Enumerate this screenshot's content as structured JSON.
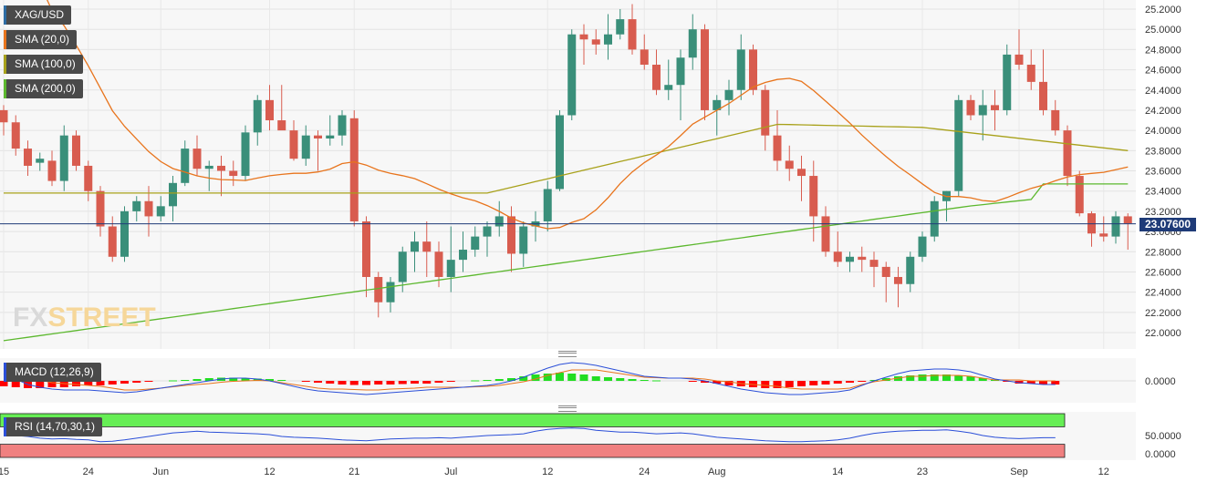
{
  "instrument": "XAG/USD",
  "logo": {
    "text_a": "FX",
    "text_b": "STREET"
  },
  "legend": [
    {
      "label": "XAG/USD",
      "color": "#2e6da4"
    },
    {
      "label": "SMA (20,0)",
      "color": "#e8741c"
    },
    {
      "label": "SMA (100,0)",
      "color": "#a8a11a"
    },
    {
      "label": "SMA (200,0)",
      "color": "#5cb82e"
    }
  ],
  "colors": {
    "up": "#3a8f7a",
    "down": "#d85c4f",
    "sma20": "#e8741c",
    "sma100": "#a8a11a",
    "sma200": "#5cb82e",
    "macd_line": "#2b4fd8",
    "signal_line": "#e8741c",
    "hist_up": "#22dd22",
    "hist_down": "#ff0000",
    "rsi_line": "#2b4fd8",
    "rsi_over": "#66ee55",
    "rsi_under": "#f08080"
  },
  "current_price": {
    "value": 23.076,
    "label": "23.07600"
  },
  "price_axis": {
    "ticks": [
      "25.2000",
      "25.0000",
      "24.8000",
      "24.6000",
      "24.4000",
      "24.2000",
      "24.0000",
      "23.8000",
      "23.6000",
      "23.4000",
      "23.2000",
      "23.0000",
      "22.8000",
      "22.6000",
      "22.4000",
      "22.2000",
      "22.0000"
    ],
    "min": 21.85,
    "max": 25.25
  },
  "time_axis": {
    "labels": [
      {
        "label": "15",
        "i": 0
      },
      {
        "label": "24",
        "i": 7
      },
      {
        "label": "Jun",
        "i": 13
      },
      {
        "label": "12",
        "i": 22
      },
      {
        "label": "21",
        "i": 29
      },
      {
        "label": "Jul",
        "i": 37
      },
      {
        "label": "12",
        "i": 45
      },
      {
        "label": "24",
        "i": 53
      },
      {
        "label": "Aug",
        "i": 59
      },
      {
        "label": "14",
        "i": 69
      },
      {
        "label": "23",
        "i": 76
      },
      {
        "label": "Sep",
        "i": 84
      },
      {
        "label": "12",
        "i": 91
      }
    ]
  },
  "macd": {
    "label": "MACD (12,26,9)",
    "tick": "0.0000",
    "histogram": [
      -0.06,
      -0.07,
      -0.08,
      -0.08,
      -0.07,
      -0.07,
      -0.06,
      -0.05,
      -0.05,
      -0.04,
      -0.03,
      -0.02,
      -0.01,
      0.0,
      0.005,
      0.01,
      0.02,
      0.03,
      0.035,
      0.035,
      0.03,
      0.025,
      0.02,
      0.01,
      0.0,
      -0.01,
      -0.02,
      -0.03,
      -0.04,
      -0.045,
      -0.045,
      -0.04,
      -0.04,
      -0.035,
      -0.03,
      -0.03,
      -0.02,
      -0.01,
      0.0,
      0.005,
      0.01,
      0.02,
      0.03,
      0.05,
      0.07,
      0.08,
      0.09,
      0.08,
      0.07,
      0.05,
      0.04,
      0.03,
      0.02,
      0.01,
      0.005,
      0.0,
      0.0,
      -0.01,
      -0.02,
      -0.03,
      -0.05,
      -0.06,
      -0.07,
      -0.08,
      -0.08,
      -0.07,
      -0.06,
      -0.05,
      -0.04,
      -0.03,
      -0.02,
      -0.01,
      0.01,
      0.03,
      0.05,
      0.06,
      0.07,
      0.07,
      0.07,
      0.06,
      0.05,
      0.03,
      0.01,
      -0.01,
      -0.03,
      -0.03,
      -0.04,
      -0.04
    ],
    "macd_line": [
      0.08,
      0.02,
      -0.04,
      -0.07,
      -0.09,
      -0.1,
      -0.1,
      -0.1,
      -0.11,
      -0.12,
      -0.13,
      -0.12,
      -0.1,
      -0.08,
      -0.06,
      -0.04,
      -0.02,
      0.0,
      0.02,
      0.03,
      0.03,
      0.02,
      0.0,
      -0.03,
      -0.06,
      -0.09,
      -0.11,
      -0.12,
      -0.13,
      -0.14,
      -0.15,
      -0.14,
      -0.13,
      -0.12,
      -0.11,
      -0.1,
      -0.09,
      -0.08,
      -0.07,
      -0.06,
      -0.05,
      -0.03,
      0.0,
      0.04,
      0.09,
      0.14,
      0.18,
      0.2,
      0.19,
      0.17,
      0.14,
      0.11,
      0.08,
      0.05,
      0.04,
      0.03,
      0.03,
      0.02,
      0.0,
      -0.03,
      -0.06,
      -0.09,
      -0.11,
      -0.13,
      -0.14,
      -0.15,
      -0.15,
      -0.14,
      -0.13,
      -0.12,
      -0.1,
      -0.05,
      0.0,
      0.04,
      0.08,
      0.11,
      0.12,
      0.13,
      0.13,
      0.12,
      0.1,
      0.06,
      0.02,
      0.0,
      -0.02,
      -0.03,
      -0.04,
      -0.04
    ],
    "signal_line": [
      0.14,
      0.09,
      0.04,
      0.01,
      -0.02,
      -0.03,
      -0.04,
      -0.05,
      -0.06,
      -0.08,
      -0.1,
      -0.1,
      -0.09,
      -0.08,
      -0.065,
      -0.05,
      -0.04,
      -0.03,
      -0.015,
      -0.005,
      0.0,
      0.005,
      0.0,
      -0.02,
      -0.04,
      -0.06,
      -0.08,
      -0.09,
      -0.09,
      -0.095,
      -0.1,
      -0.1,
      -0.09,
      -0.085,
      -0.08,
      -0.07,
      -0.07,
      -0.07,
      -0.07,
      -0.065,
      -0.06,
      -0.05,
      -0.03,
      -0.01,
      0.02,
      0.06,
      0.09,
      0.12,
      0.12,
      0.12,
      0.1,
      0.08,
      0.06,
      0.04,
      0.035,
      0.03,
      0.03,
      0.03,
      0.02,
      0.0,
      -0.01,
      -0.03,
      -0.04,
      -0.05,
      -0.06,
      -0.08,
      -0.09,
      -0.09,
      -0.09,
      -0.09,
      -0.08,
      -0.04,
      -0.01,
      0.01,
      0.03,
      0.05,
      0.05,
      0.06,
      0.06,
      0.06,
      0.05,
      0.03,
      0.01,
      0.01,
      0.01,
      0.0,
      0.0,
      0.0
    ]
  },
  "rsi": {
    "label": "RSI (14,70,30,1)",
    "ticks": [
      "50.0000",
      "0.0000"
    ],
    "values": [
      52,
      50,
      48,
      44,
      42,
      43,
      41,
      40,
      36,
      37,
      40,
      44,
      48,
      52,
      56,
      58,
      60,
      58,
      57,
      56,
      55,
      54,
      52,
      48,
      46,
      45,
      44,
      42,
      40,
      39,
      38,
      40,
      42,
      43,
      44,
      44,
      45,
      44,
      46,
      48,
      50,
      51,
      52,
      54,
      60,
      64,
      66,
      67,
      66,
      62,
      60,
      58,
      58,
      56,
      54,
      55,
      56,
      54,
      50,
      46,
      44,
      42,
      40,
      38,
      37,
      36,
      36,
      37,
      38,
      40,
      44,
      50,
      55,
      58,
      60,
      61,
      62,
      62,
      63,
      60,
      56,
      50,
      46,
      44,
      43,
      44,
      45,
      45
    ]
  }
}
